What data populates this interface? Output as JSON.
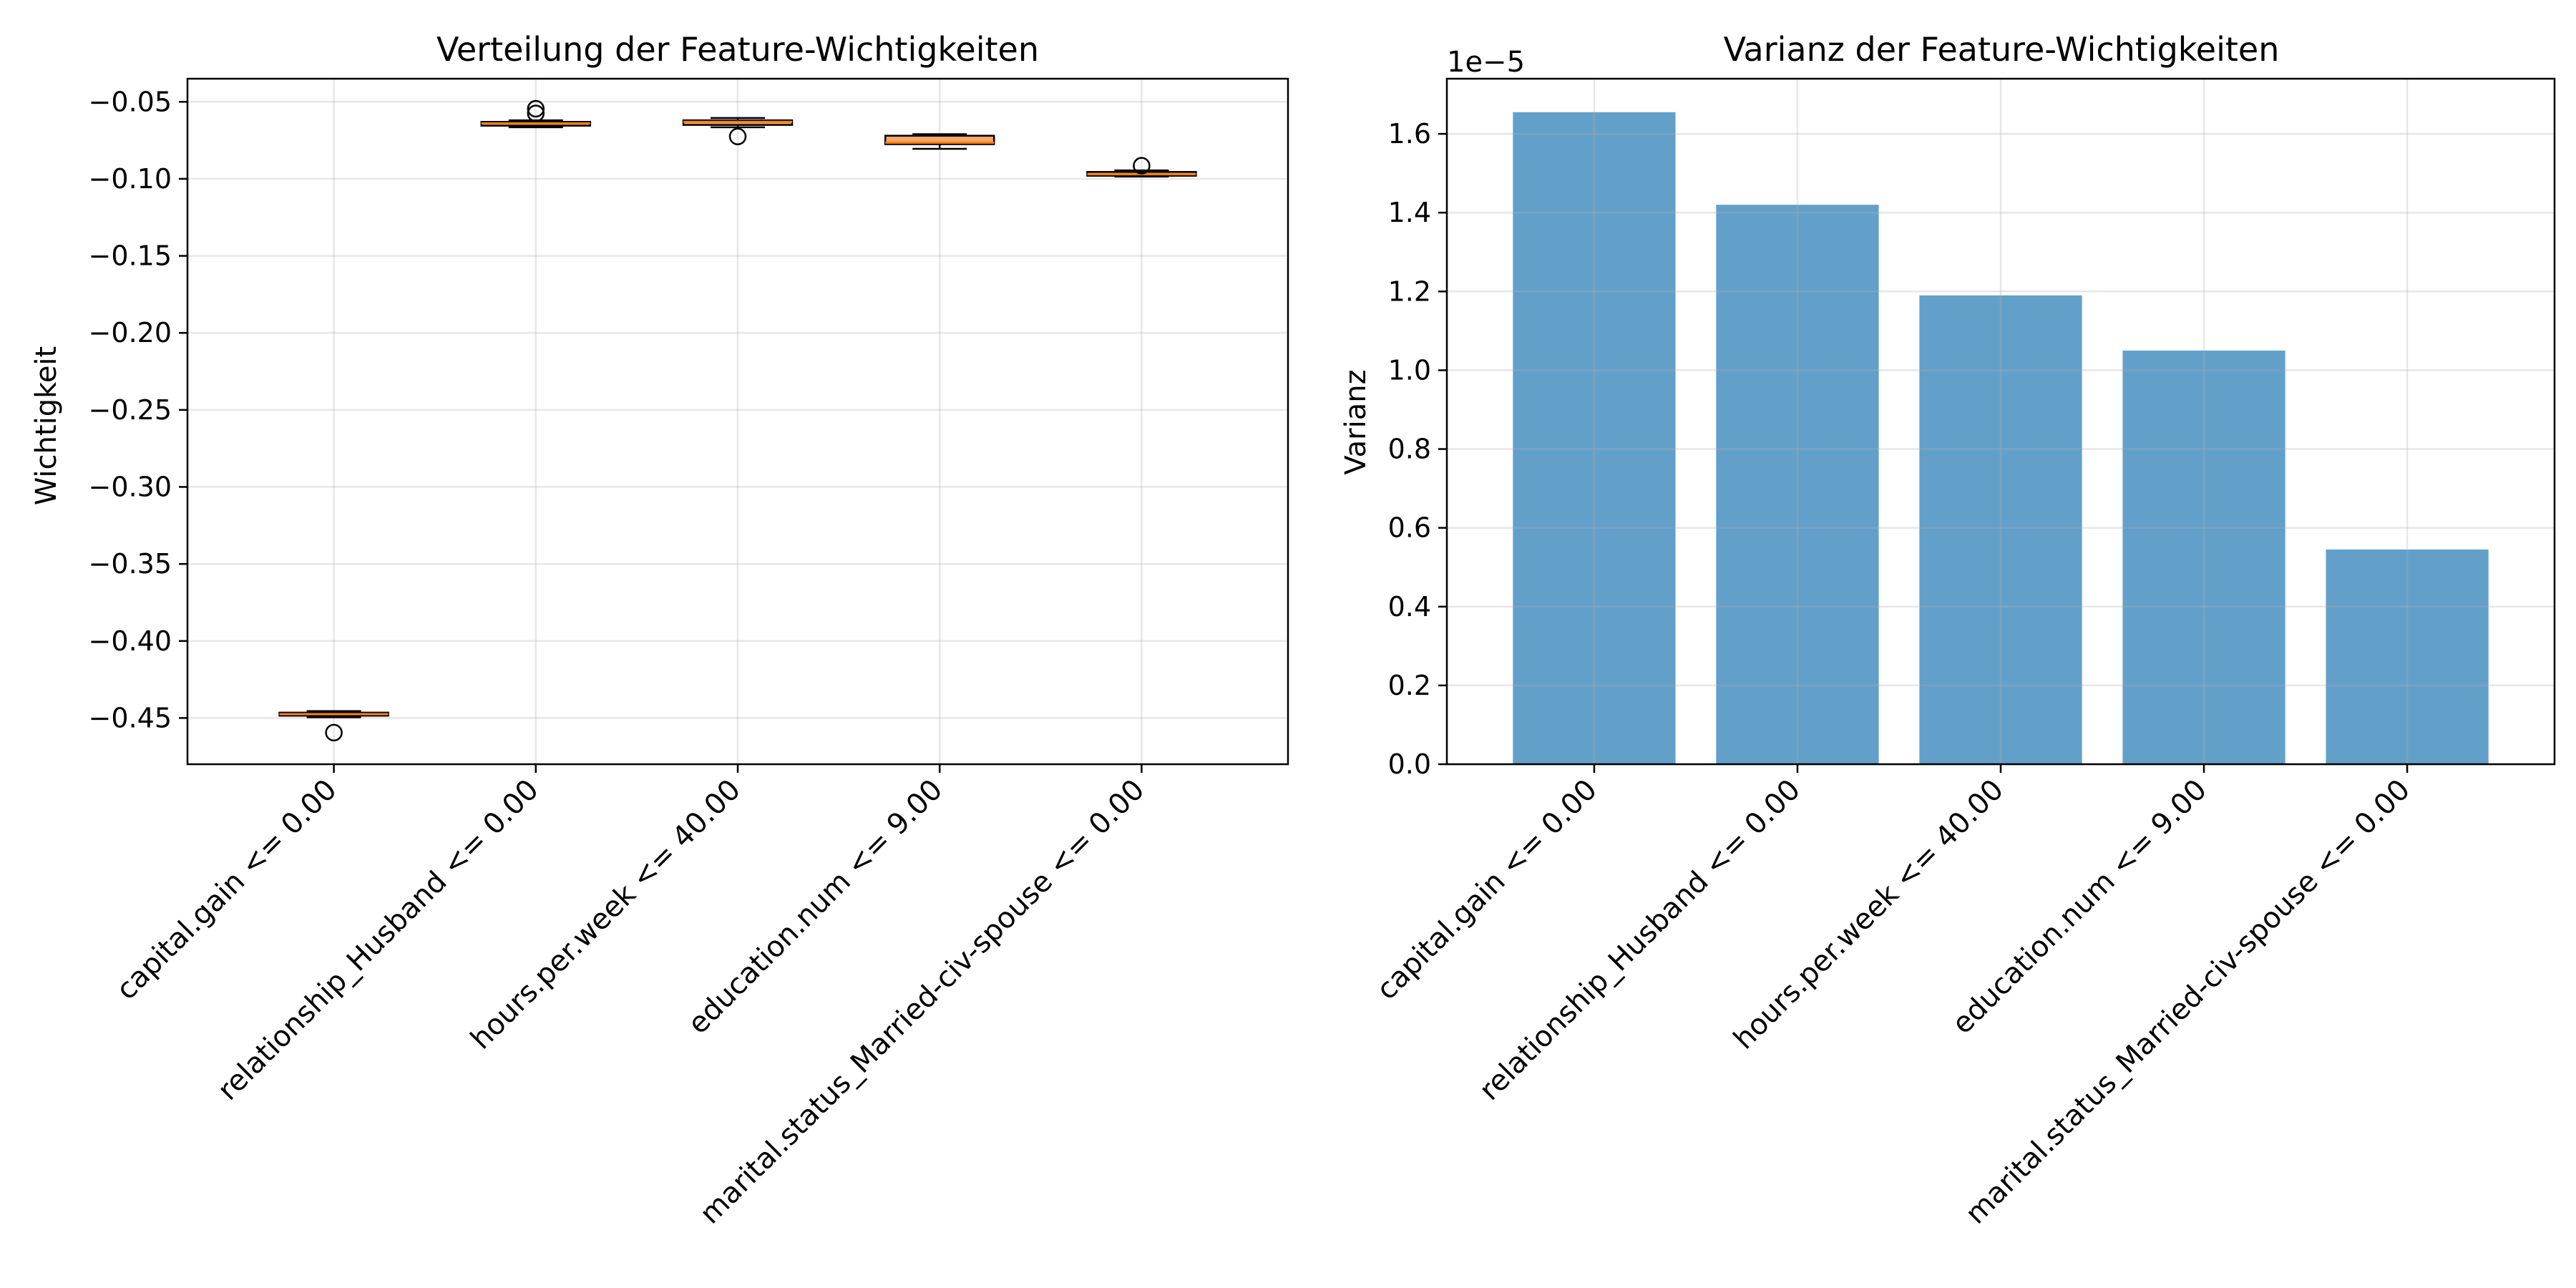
{
  "chart_data": [
    {
      "type": "box",
      "title": "Verteilung der Feature-Wichtigkeiten",
      "ylabel": "Wichtigkeit",
      "xlabel": "",
      "ylim": [
        -0.48,
        -0.035
      ],
      "yticks": [
        "−0.05",
        "−0.10",
        "−0.15",
        "−0.20",
        "−0.25",
        "−0.30",
        "−0.35",
        "−0.40",
        "−0.45"
      ],
      "ytick_values": [
        -0.05,
        -0.1,
        -0.15,
        -0.2,
        -0.25,
        -0.3,
        -0.35,
        -0.4,
        -0.45
      ],
      "grid": true,
      "box_color": "#f4a76a",
      "median_color": "#ff7f0e",
      "categories": [
        "capital.gain <= 0.00",
        "relationship_Husband <= 0.00",
        "hours.per.week <= 40.00",
        "education.num <= 9.00",
        "marital.status_Married-civ-spouse <= 0.00"
      ],
      "boxes": [
        {
          "whisker_low": -0.4495,
          "q1": -0.4485,
          "median": -0.4475,
          "q3": -0.4465,
          "whisker_high": -0.4455,
          "outliers": [
            -0.4595
          ]
        },
        {
          "whisker_low": -0.0665,
          "q1": -0.0655,
          "median": -0.064,
          "q3": -0.063,
          "whisker_high": -0.062,
          "outliers": [
            -0.0545,
            -0.0575
          ]
        },
        {
          "whisker_low": -0.0665,
          "q1": -0.065,
          "median": -0.063,
          "q3": -0.062,
          "whisker_high": -0.0605,
          "outliers": [
            -0.0725
          ]
        },
        {
          "whisker_low": -0.0805,
          "q1": -0.0775,
          "median": -0.0765,
          "q3": -0.072,
          "whisker_high": -0.071,
          "outliers": []
        },
        {
          "whisker_low": -0.0985,
          "q1": -0.098,
          "median": -0.097,
          "q3": -0.0955,
          "whisker_high": -0.0945,
          "outliers": [
            -0.0915
          ]
        }
      ]
    },
    {
      "type": "bar",
      "title": "Varianz der Feature-Wichtigkeiten",
      "ylabel": "Varianz",
      "xlabel": "",
      "offset_label": "1e−5",
      "ylim": [
        0,
        1.74
      ],
      "yticks": [
        "0.0",
        "0.2",
        "0.4",
        "0.6",
        "0.8",
        "1.0",
        "1.2",
        "1.4",
        "1.6"
      ],
      "ytick_values": [
        0,
        0.2,
        0.4,
        0.6,
        0.8,
        1.0,
        1.2,
        1.4,
        1.6
      ],
      "grid": true,
      "bar_color": "#1f77b4",
      "categories": [
        "capital.gain <= 0.00",
        "relationship_Husband <= 0.00",
        "hours.per.week <= 40.00",
        "education.num <= 9.00",
        "marital.status_Married-civ-spouse <= 0.00"
      ],
      "values": [
        1.655,
        1.42,
        1.19,
        1.05,
        0.545
      ]
    }
  ]
}
